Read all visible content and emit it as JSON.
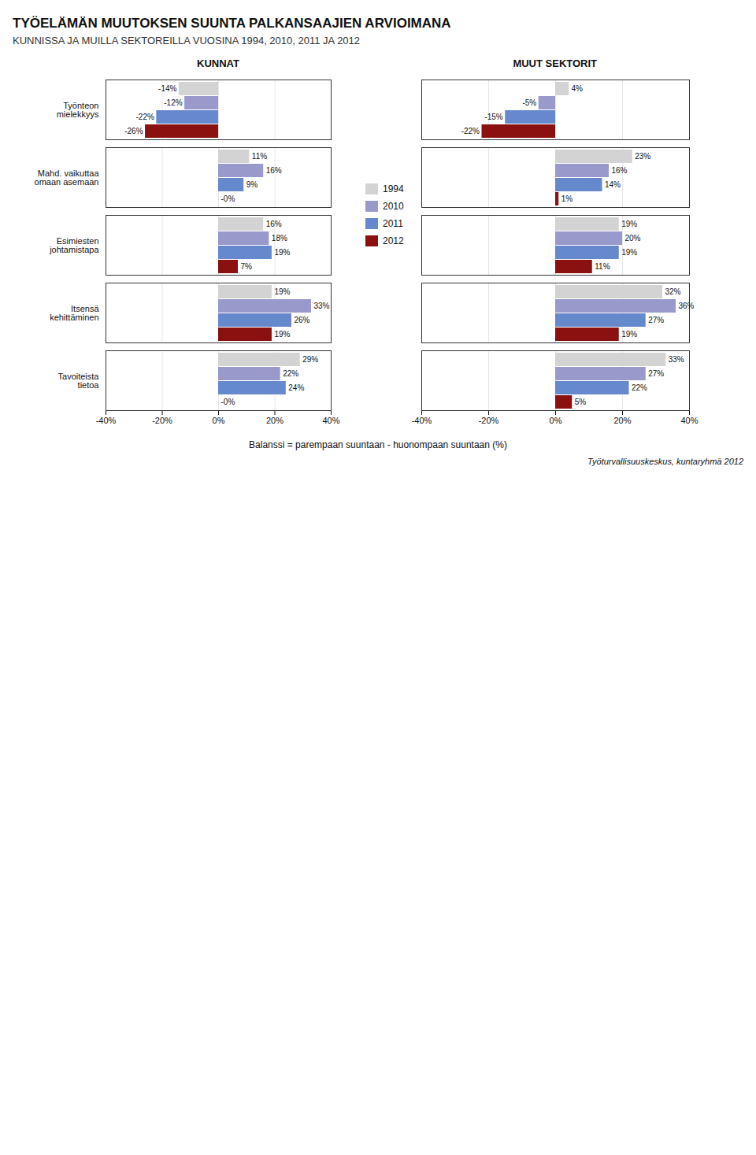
{
  "title": "TYÖELÄMÄN MUUTOKSEN SUUNTA PALKANSAAJIEN ARVIOIMANA",
  "subtitle": "KUNNISSA JA MUILLA SEKTOREILLA VUOSINA  1994, 2010, 2011 JA 2012",
  "xlabel": "Balanssi = parempaan suuntaan - huonompaan suuntaan (%)",
  "caption": "Työturvallisuuskeskus, kuntaryhmä 2012",
  "chart_data": [
    {
      "type": "bar",
      "orientation": "horizontal",
      "title": "KUNNAT",
      "categories": [
        "Työnteon\nmielekkyys",
        "Mahd. vaikuttaa\nomaan asemaan",
        "Esimiesten\njohtamistapa",
        "Itsensä\nkehittäminen",
        "Tavoiteista\ntietoa"
      ],
      "series": [
        {
          "name": "1994",
          "color": "#d3d3d3",
          "values": [
            -14,
            11,
            16,
            19,
            29
          ],
          "value_labels": [
            "-14%",
            "11%",
            "16%",
            "19%",
            "29%"
          ]
        },
        {
          "name": "2010",
          "color": "#9999cc",
          "values": [
            -12,
            16,
            18,
            33,
            22
          ],
          "value_labels": [
            "-12%",
            "16%",
            "18%",
            "33%",
            "22%"
          ]
        },
        {
          "name": "2011",
          "color": "#6688cc",
          "values": [
            -22,
            9,
            19,
            26,
            24
          ],
          "value_labels": [
            "-22%",
            "9%",
            "19%",
            "26%",
            "24%"
          ]
        },
        {
          "name": "2012",
          "color": "#8b1010",
          "values": [
            -26,
            0,
            7,
            19,
            0
          ],
          "value_labels": [
            "-26%",
            "-0%",
            "7%",
            "19%",
            "-0%"
          ]
        }
      ],
      "xlim": [
        -40,
        40
      ],
      "xticks": [
        {
          "value": -40,
          "label": "-40%"
        },
        {
          "value": -20,
          "label": "-20%"
        },
        {
          "value": 0,
          "label": "0%"
        },
        {
          "value": 20,
          "label": "20%"
        },
        {
          "value": 40,
          "label": "40%"
        }
      ],
      "grid": true,
      "data_labels": true,
      "legend": "right"
    },
    {
      "type": "bar",
      "orientation": "horizontal",
      "title": "MUUT SEKTORIT",
      "categories": [
        "Työnteon\nmielekkyys",
        "Mahd. vaikuttaa\nomaan asemaan",
        "Esimiesten\njohtamistapa",
        "Itsensä\nkehittäminen",
        "Tavoiteista\ntietoa"
      ],
      "series": [
        {
          "name": "1994",
          "color": "#d3d3d3",
          "values": [
            4,
            23,
            19,
            32,
            33
          ],
          "value_labels": [
            "4%",
            "23%",
            "19%",
            "32%",
            "33%"
          ]
        },
        {
          "name": "2010",
          "color": "#9999cc",
          "values": [
            -5,
            16,
            20,
            36,
            27
          ],
          "value_labels": [
            "-5%",
            "16%",
            "20%",
            "36%",
            "27%"
          ]
        },
        {
          "name": "2011",
          "color": "#6688cc",
          "values": [
            -15,
            14,
            19,
            27,
            22
          ],
          "value_labels": [
            "-15%",
            "14%",
            "19%",
            "27%",
            "22%"
          ]
        },
        {
          "name": "2012",
          "color": "#8b1010",
          "values": [
            -22,
            1,
            11,
            19,
            5
          ],
          "value_labels": [
            "-22%",
            "1%",
            "11%",
            "19%",
            "5%"
          ]
        }
      ],
      "xlim": [
        -40,
        40
      ],
      "xticks": [
        {
          "value": -40,
          "label": "-40%"
        },
        {
          "value": -20,
          "label": "-20%"
        },
        {
          "value": 0,
          "label": "0%"
        },
        {
          "value": 20,
          "label": "20%"
        },
        {
          "value": 40,
          "label": "40%"
        }
      ],
      "grid": true,
      "data_labels": true
    }
  ]
}
